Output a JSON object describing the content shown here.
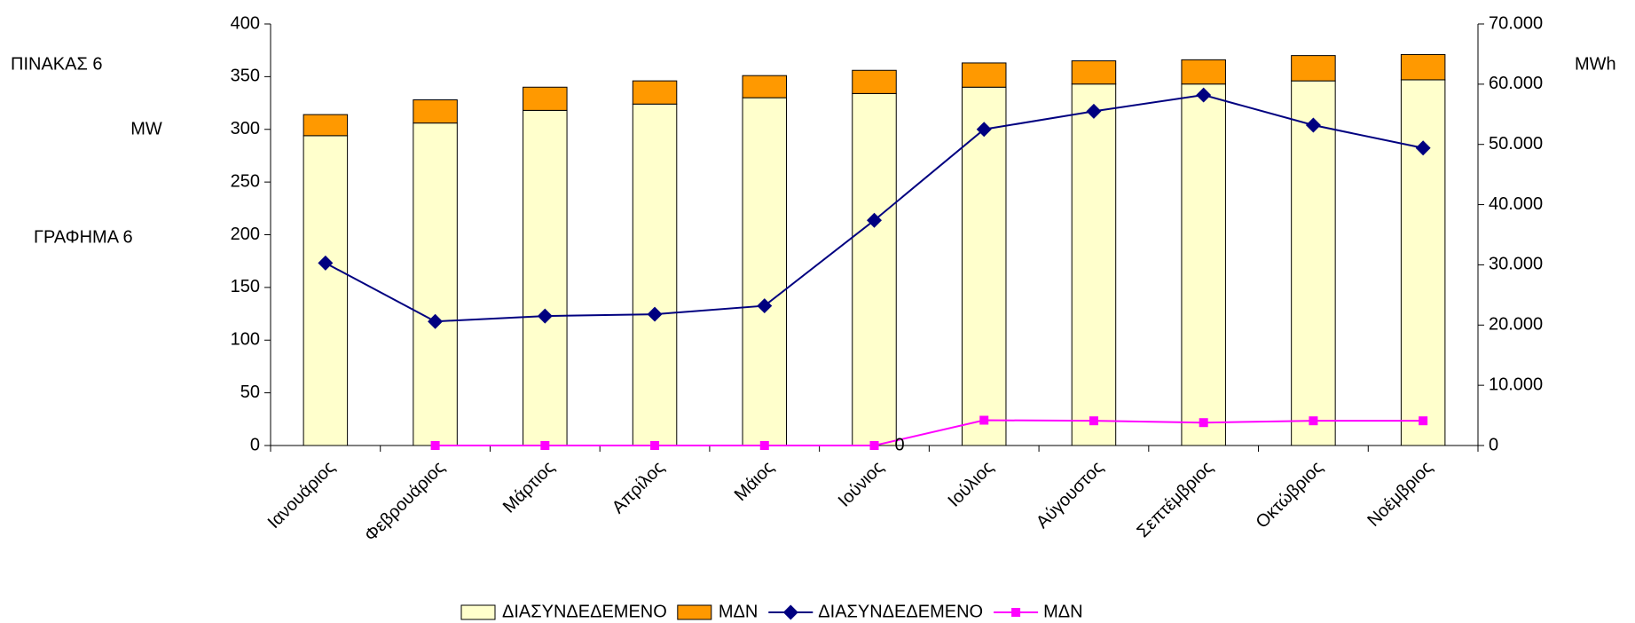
{
  "chart_data": {
    "type": "bar",
    "annotations": [
      "ΠΙΝΑΚΑΣ 6",
      "MW",
      "ΓΡΑΦΗΜΑ 6",
      "MWh"
    ],
    "categories": [
      "Ιανουάριος",
      "Φεβρουάριος",
      "Μάρτιος",
      "Απρίλος",
      "Μάιος",
      "Ιούνιος",
      "Ιούλιος",
      "Αύγουστος",
      "Σεπτέμβριος",
      "Οκτώβριος",
      "Νοέμβριος"
    ],
    "series": [
      {
        "name": "ΔΙΑΣΥΝΔΕΔΕΜΕΝΟ",
        "type": "bar",
        "color": "#ffffcc",
        "values": [
          294,
          306,
          318,
          324,
          330,
          334,
          340,
          343,
          343,
          346,
          347
        ]
      },
      {
        "name": "ΜΔΝ",
        "type": "bar",
        "color": "#ff9900",
        "values": [
          20,
          22,
          22,
          22,
          21,
          22,
          23,
          22,
          23,
          24,
          24
        ]
      },
      {
        "name": "ΔΙΑΣΥΝΔΕΔΕΜΕΝΟ",
        "type": "line",
        "axis": "y2",
        "color": "#000080",
        "values": [
          30300,
          20600,
          21500,
          21800,
          23200,
          37400,
          52500,
          55500,
          58200,
          53200,
          49400
        ]
      },
      {
        "name": "ΜΔΝ",
        "type": "line",
        "axis": "y2",
        "color": "#ff00ff",
        "values": [
          null,
          0,
          0,
          0,
          0,
          0,
          4200,
          4100,
          3800,
          4100,
          4100
        ]
      }
    ],
    "ylim": [
      0,
      400
    ],
    "yticks": [
      0,
      50,
      100,
      150,
      200,
      250,
      300,
      350,
      400
    ],
    "y2lim": [
      0,
      70000
    ],
    "y2ticks": [
      0,
      {
        "value": 10000,
        "label": "10.000"
      },
      {
        "value": 20000,
        "label": "20.000"
      },
      {
        "value": 30000,
        "label": "30.000"
      },
      {
        "value": 40000,
        "label": "40.000"
      },
      {
        "value": 50000,
        "label": "50.000"
      },
      {
        "value": 60000,
        "label": "60.000"
      },
      {
        "value": 70000,
        "label": "70.000"
      }
    ],
    "legend": "bottom",
    "grid": false
  }
}
